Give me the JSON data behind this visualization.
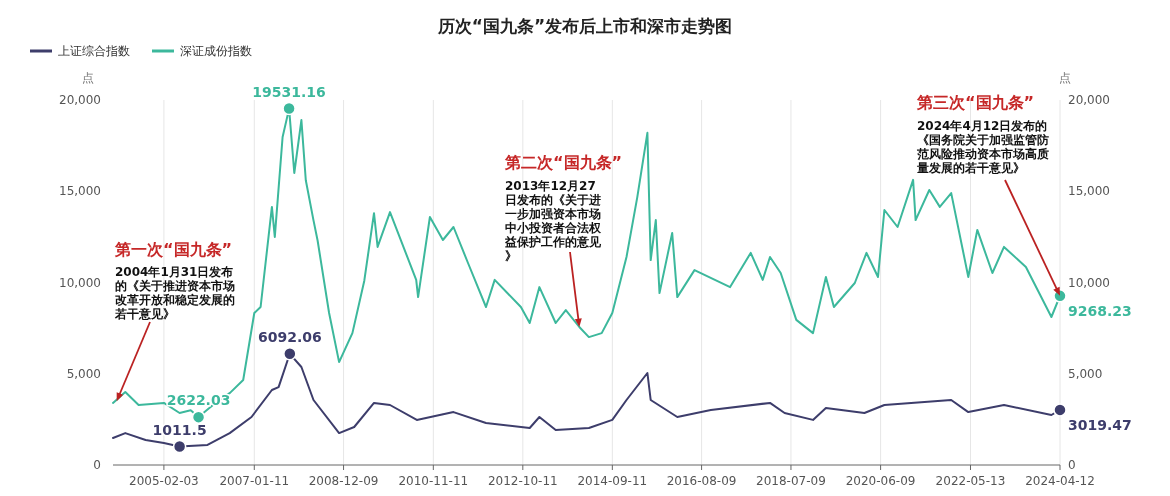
{
  "chart_data": {
    "type": "line",
    "title": "历次“国九条”发布后上市和深市走势图",
    "ylabel": "点",
    "y2label": "点",
    "xlim": [
      "2004-01-02",
      "2024-04-12"
    ],
    "xticks": [
      "2005-02-03",
      "2007-01-11",
      "2008-12-09",
      "2010-11-11",
      "2012-10-11",
      "2014-09-11",
      "2016-08-09",
      "2018-07-09",
      "2020-06-09",
      "2022-05-13",
      "2024-04-12"
    ],
    "ylim": [
      0,
      20000
    ],
    "yticks": [
      0,
      {
        "value": 5000,
        "label": "5,000"
      },
      {
        "value": 10000,
        "label": "10,000"
      },
      {
        "value": 15000,
        "label": "15,000"
      },
      {
        "value": 20000,
        "label": "20,000"
      }
    ],
    "y2lim": [
      0,
      20000
    ],
    "y2ticks": [
      0,
      {
        "value": 5000,
        "label": "5,000"
      },
      {
        "value": 10000,
        "label": "10,000"
      },
      {
        "value": 15000,
        "label": "15,000"
      },
      {
        "value": 20000,
        "label": "20,000"
      }
    ],
    "grid": "x",
    "legend": "top left",
    "marker": "none",
    "line_style": "solid",
    "series": [
      {
        "name": "上证综合指数",
        "color": "#3d3d6b",
        "x": [
          "2004-01-02",
          "2004-04-07",
          "2004-09-13",
          "2005-02-03",
          "2005-06-06",
          "2006-01-10",
          "2006-07-03",
          "2006-12-20",
          "2007-05-29",
          "2007-07-20",
          "2007-10-16",
          "2008-01-14",
          "2008-04-18",
          "2008-11-04",
          "2009-03-02",
          "2009-08-04",
          "2009-12-07",
          "2010-07-05",
          "2011-04-18",
          "2011-12-28",
          "2012-12-04",
          "2013-02-18",
          "2013-06-25",
          "2014-03-12",
          "2014-09-11",
          "2014-12-31",
          "2015-06-12",
          "2015-07-08",
          "2016-02-01",
          "2016-10-20",
          "2018-01-26",
          "2018-05-20",
          "2018-12-28",
          "2019-04-08",
          "2020-02-03",
          "2020-07-09",
          "2021-12-13",
          "2022-04-26",
          "2023-01-30",
          "2024-02-05",
          "2024-04-12"
        ],
        "values": [
          1480,
          1750,
          1370,
          1200,
          1011.5,
          1100,
          1750,
          2630,
          4110,
          4270,
          6092.06,
          5370,
          3560,
          1750,
          2080,
          3400,
          3290,
          2470,
          2900,
          2300,
          2030,
          2630,
          1920,
          2030,
          2470,
          3560,
          5040,
          3560,
          2630,
          3010,
          3400,
          2850,
          2470,
          3120,
          2850,
          3290,
          3560,
          2900,
          3290,
          2740,
          3019.47
        ],
        "value_labels": [
          null,
          null,
          null,
          null,
          "1011.5",
          null,
          null,
          null,
          null,
          null,
          "6092.06",
          null,
          null,
          null,
          null,
          null,
          null,
          null,
          null,
          null,
          null,
          null,
          null,
          null,
          null,
          null,
          null,
          null,
          null,
          null,
          null,
          null,
          null,
          null,
          null,
          null,
          null,
          null,
          null,
          null,
          "3019.47"
        ]
      },
      {
        "name": "深证成份指数",
        "color": "#3cb89c",
        "x": [
          "2004-01-02",
          "2004-04-07",
          "2004-07-20",
          "2005-02-03",
          "2005-06-06",
          "2005-09-01",
          "2005-11-01",
          "2006-04-10",
          "2006-07-05",
          "2006-10-16",
          "2007-01-11",
          "2007-03-01",
          "2007-05-29",
          "2007-06-20",
          "2007-08-20",
          "2007-10-10",
          "2007-11-20",
          "2008-01-14",
          "2008-02-18",
          "2008-04-18",
          "2008-05-20",
          "2008-08-18",
          "2008-11-04",
          "2009-02-16",
          "2009-05-20",
          "2009-08-04",
          "2009-09-01",
          "2009-12-07",
          "2010-06-30",
          "2010-07-15",
          "2010-10-15",
          "2011-01-25",
          "2011-04-18",
          "2011-08-09",
          "2011-12-28",
          "2012-03-05",
          "2012-09-26",
          "2012-12-04",
          "2013-02-18",
          "2013-06-25",
          "2013-09-12",
          "2013-12-27",
          "2014-03-12",
          "2014-06-20",
          "2014-09-11",
          "2014-12-31",
          "2015-03-25",
          "2015-06-12",
          "2015-07-08",
          "2015-08-17",
          "2015-09-15",
          "2015-12-23",
          "2016-02-01",
          "2016-06-15",
          "2017-03-20",
          "2017-08-28",
          "2017-11-30",
          "2018-01-26",
          "2018-04-20",
          "2018-08-20",
          "2018-12-28",
          "2019-04-08",
          "2019-06-10",
          "2019-11-20",
          "2020-02-20",
          "2020-05-20",
          "2020-07-09",
          "2020-10-20",
          "2021-02-18",
          "2021-03-10",
          "2021-06-25",
          "2021-09-15",
          "2021-12-13",
          "2022-04-26",
          "2022-07-05",
          "2022-10-31",
          "2023-01-30",
          "2023-07-20",
          "2024-02-05",
          "2024-04-12"
        ],
        "values": [
          3400,
          4000,
          3290,
          3400,
          2850,
          3000,
          2622.03,
          3560,
          3950,
          4660,
          8330,
          8660,
          14140,
          12500,
          17970,
          19531.16,
          16000,
          18900,
          15600,
          13400,
          12300,
          8330,
          5640,
          7230,
          10100,
          13800,
          11950,
          13860,
          10140,
          9200,
          13590,
          12330,
          13040,
          11070,
          8660,
          10140,
          8660,
          7780,
          9750,
          7780,
          8490,
          7560,
          7010,
          7230,
          8330,
          11400,
          14680,
          18200,
          11230,
          13420,
          9420,
          12710,
          9200,
          10680,
          9750,
          11620,
          10140,
          11400,
          10520,
          7950,
          7230,
          10300,
          8660,
          9970,
          11620,
          10300,
          13970,
          13040,
          15620,
          13420,
          15070,
          14140,
          14900,
          10300,
          12880,
          10520,
          11950,
          10850,
          8110,
          9268.23
        ],
        "value_labels": [
          null,
          null,
          null,
          null,
          null,
          null,
          "2622.03",
          null,
          null,
          null,
          null,
          null,
          null,
          null,
          null,
          "19531.16",
          null,
          null,
          null,
          null,
          null,
          null,
          null,
          null,
          null,
          null,
          null,
          null,
          null,
          null,
          null,
          null,
          null,
          null,
          null,
          null,
          null,
          null,
          null,
          null,
          null,
          null,
          null,
          null,
          null,
          null,
          null,
          null,
          null,
          null,
          null,
          null,
          null,
          null,
          null,
          null,
          null,
          null,
          null,
          null,
          null,
          null,
          null,
          null,
          null,
          null,
          null,
          null,
          null,
          null,
          null,
          null,
          null,
          null,
          null,
          null,
          null,
          null,
          null,
          "9268.23"
        ]
      }
    ],
    "annotations": [
      "第一次“国九条”",
      {
        "text": "2004年1月31日发布的《关于推进资本市场改革开放和稳定发展的若干意见》",
        "x": "2004-01-31",
        "y": 3500
      },
      "第二次“国九条”",
      {
        "text": "2013年12月27日发布的《关于进一步加强资本市场中小投资者合法权益保护工作的意见》",
        "x": "2013-12-27",
        "y": 7560
      },
      "第三次“国九条”",
      {
        "text": "2024年4月12日发布的《国务院关于加强监管防范风险推动资本市场高质量发展的若干意见》",
        "x": "2024-04-12",
        "y": 9268.23
      }
    ]
  }
}
